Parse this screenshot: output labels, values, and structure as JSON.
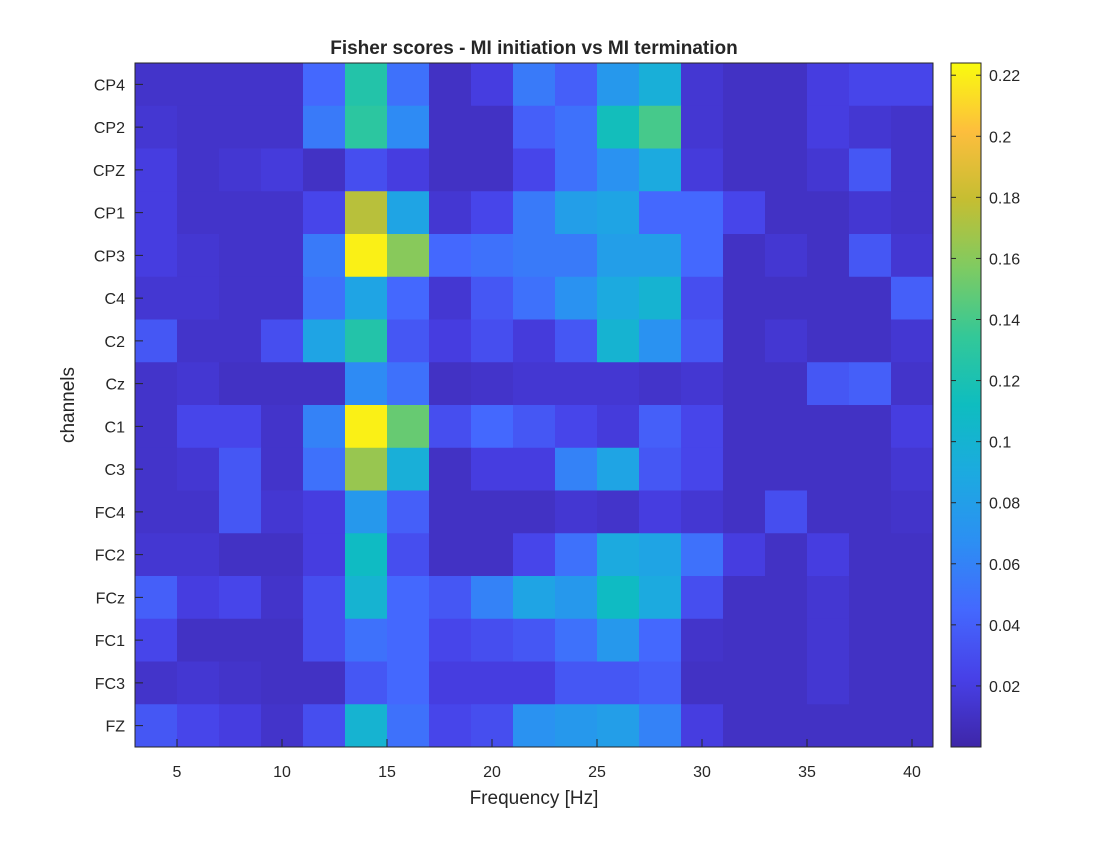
{
  "chart_data": {
    "type": "heatmap",
    "title": "Fisher scores - MI initiation vs MI termination",
    "xlabel": "Frequency [Hz]",
    "ylabel": "channels",
    "x": [
      4,
      6,
      8,
      10,
      12,
      14,
      16,
      18,
      20,
      22,
      24,
      26,
      28,
      30,
      32,
      34,
      36,
      38,
      40
    ],
    "x_ticks": [
      5,
      10,
      15,
      20,
      25,
      30,
      35,
      40
    ],
    "xlim": [
      3,
      41
    ],
    "rows": [
      "CP4",
      "CP2",
      "CPZ",
      "CP1",
      "CP3",
      "C4",
      "C2",
      "Cz",
      "C1",
      "C3",
      "FC4",
      "FC2",
      "FCz",
      "FC1",
      "FC3",
      "FZ"
    ],
    "values": [
      [
        0.012,
        0.012,
        0.012,
        0.012,
        0.045,
        0.125,
        0.05,
        0.01,
        0.02,
        0.055,
        0.04,
        0.075,
        0.095,
        0.015,
        0.01,
        0.01,
        0.02,
        0.025,
        0.025
      ],
      [
        0.015,
        0.012,
        0.012,
        0.012,
        0.055,
        0.13,
        0.065,
        0.01,
        0.01,
        0.04,
        0.05,
        0.115,
        0.14,
        0.015,
        0.01,
        0.01,
        0.02,
        0.015,
        0.012
      ],
      [
        0.02,
        0.012,
        0.015,
        0.018,
        0.01,
        0.03,
        0.02,
        0.01,
        0.01,
        0.025,
        0.05,
        0.07,
        0.09,
        0.018,
        0.01,
        0.01,
        0.015,
        0.035,
        0.012
      ],
      [
        0.02,
        0.012,
        0.012,
        0.012,
        0.025,
        0.175,
        0.085,
        0.015,
        0.025,
        0.055,
        0.08,
        0.085,
        0.045,
        0.045,
        0.025,
        0.01,
        0.01,
        0.015,
        0.012
      ],
      [
        0.02,
        0.015,
        0.012,
        0.012,
        0.055,
        0.22,
        0.16,
        0.045,
        0.05,
        0.055,
        0.055,
        0.08,
        0.08,
        0.045,
        0.01,
        0.015,
        0.01,
        0.035,
        0.015
      ],
      [
        0.015,
        0.015,
        0.012,
        0.012,
        0.05,
        0.085,
        0.045,
        0.015,
        0.035,
        0.05,
        0.07,
        0.09,
        0.1,
        0.03,
        0.01,
        0.01,
        0.01,
        0.01,
        0.04
      ],
      [
        0.035,
        0.012,
        0.012,
        0.03,
        0.085,
        0.125,
        0.035,
        0.02,
        0.03,
        0.018,
        0.035,
        0.1,
        0.07,
        0.035,
        0.01,
        0.015,
        0.01,
        0.01,
        0.015
      ],
      [
        0.012,
        0.015,
        0.01,
        0.01,
        0.01,
        0.065,
        0.05,
        0.01,
        0.012,
        0.015,
        0.015,
        0.015,
        0.012,
        0.015,
        0.01,
        0.01,
        0.035,
        0.04,
        0.012
      ],
      [
        0.012,
        0.025,
        0.025,
        0.012,
        0.06,
        0.22,
        0.15,
        0.03,
        0.045,
        0.035,
        0.025,
        0.018,
        0.04,
        0.025,
        0.01,
        0.01,
        0.01,
        0.01,
        0.02
      ],
      [
        0.012,
        0.015,
        0.035,
        0.012,
        0.05,
        0.165,
        0.095,
        0.01,
        0.02,
        0.02,
        0.06,
        0.085,
        0.035,
        0.025,
        0.01,
        0.01,
        0.01,
        0.01,
        0.015
      ],
      [
        0.012,
        0.012,
        0.035,
        0.015,
        0.02,
        0.075,
        0.04,
        0.01,
        0.01,
        0.01,
        0.015,
        0.012,
        0.02,
        0.015,
        0.01,
        0.03,
        0.01,
        0.01,
        0.012
      ],
      [
        0.015,
        0.015,
        0.01,
        0.01,
        0.02,
        0.11,
        0.03,
        0.01,
        0.01,
        0.025,
        0.05,
        0.09,
        0.085,
        0.05,
        0.02,
        0.01,
        0.02,
        0.01,
        0.01
      ],
      [
        0.04,
        0.02,
        0.025,
        0.012,
        0.03,
        0.1,
        0.045,
        0.035,
        0.06,
        0.085,
        0.075,
        0.11,
        0.09,
        0.03,
        0.01,
        0.01,
        0.015,
        0.01,
        0.01
      ],
      [
        0.025,
        0.01,
        0.01,
        0.01,
        0.03,
        0.05,
        0.045,
        0.025,
        0.03,
        0.035,
        0.05,
        0.075,
        0.045,
        0.012,
        0.01,
        0.01,
        0.015,
        0.01,
        0.01
      ],
      [
        0.012,
        0.015,
        0.012,
        0.01,
        0.01,
        0.035,
        0.045,
        0.02,
        0.02,
        0.02,
        0.035,
        0.035,
        0.04,
        0.01,
        0.01,
        0.01,
        0.015,
        0.01,
        0.01
      ],
      [
        0.035,
        0.025,
        0.02,
        0.012,
        0.03,
        0.1,
        0.05,
        0.025,
        0.03,
        0.07,
        0.075,
        0.08,
        0.06,
        0.02,
        0.01,
        0.01,
        0.01,
        0.01,
        0.01
      ]
    ],
    "colorbar": {
      "colormap": "parula",
      "range": [
        0.0,
        0.224
      ],
      "ticks": [
        0.02,
        0.04,
        0.06,
        0.08,
        0.1,
        0.12,
        0.14,
        0.16,
        0.18,
        0.2,
        0.22
      ],
      "tick_labels": [
        "0.02",
        "0.04",
        "0.06",
        "0.08",
        "0.1",
        "0.12",
        "0.14",
        "0.16",
        "0.18",
        "0.2",
        "0.22"
      ]
    },
    "grid": false
  }
}
